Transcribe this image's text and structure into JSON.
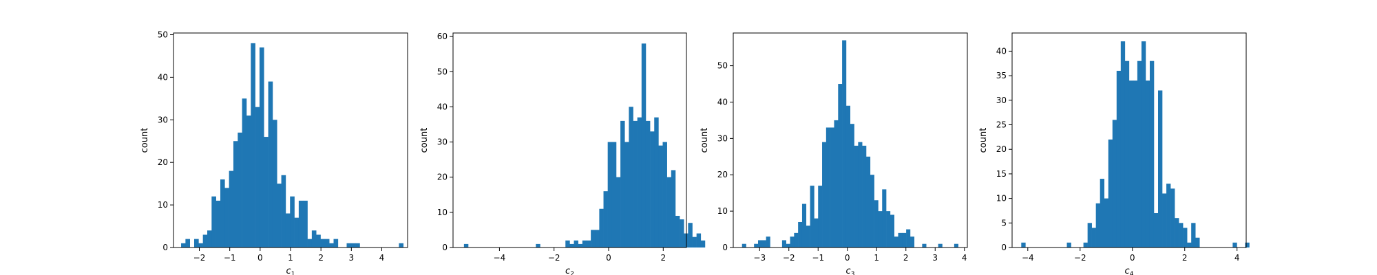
{
  "figure": {
    "background": "#ffffff",
    "bar_color": "#1f77b4"
  },
  "chart_data": [
    {
      "type": "bar",
      "ylabel": "count",
      "xlabel_main": "c",
      "xlabel_sub": "1",
      "xlim": [
        -2.85,
        4.85
      ],
      "ylim": [
        0,
        50.4
      ],
      "xticks": [
        -2,
        -1,
        0,
        1,
        2,
        3,
        4
      ],
      "yticks": [
        0,
        10,
        20,
        30,
        40,
        50
      ],
      "bin_start": -2.6,
      "bin_width": 0.1433,
      "values": [
        1,
        2,
        0,
        2,
        1,
        3,
        4,
        12,
        11,
        16,
        14,
        18,
        25,
        27,
        35,
        31,
        48,
        33,
        47,
        26,
        39,
        30,
        15,
        17,
        8,
        12,
        7,
        11,
        11,
        2,
        4,
        3,
        2,
        2,
        1,
        2,
        0,
        0,
        1,
        1,
        1,
        0,
        0,
        0,
        0,
        0,
        0,
        0,
        0,
        0,
        1
      ]
    },
    {
      "type": "bar",
      "ylabel": "count",
      "xlabel_main": "c",
      "xlabel_sub": "2",
      "xlim": [
        -5.7,
        2.85
      ],
      "ylim": [
        0,
        61
      ],
      "xticks": [
        -4,
        -2,
        0,
        2
      ],
      "yticks": [
        0,
        10,
        20,
        30,
        40,
        50,
        60
      ],
      "bin_start": -5.3,
      "bin_width": 0.1549,
      "values": [
        1,
        0,
        0,
        0,
        0,
        0,
        0,
        0,
        0,
        0,
        0,
        0,
        0,
        0,
        0,
        0,
        0,
        1,
        0,
        0,
        0,
        0,
        0,
        0,
        2,
        1,
        2,
        1,
        2,
        2,
        5,
        5,
        11,
        16,
        30,
        30,
        20,
        36,
        30,
        40,
        36,
        37,
        58,
        36,
        33,
        37,
        29,
        30,
        20,
        22,
        9,
        8,
        4,
        7,
        3,
        4,
        2
      ]
    },
    {
      "type": "bar",
      "ylabel": "count",
      "xlabel_main": "c",
      "xlabel_sub": "3",
      "xlim": [
        -3.9,
        4.1
      ],
      "ylim": [
        0,
        59
      ],
      "xticks": [
        -3,
        -2,
        -1,
        0,
        1,
        2,
        3,
        4
      ],
      "yticks": [
        0,
        10,
        20,
        30,
        40,
        50
      ],
      "bin_start": -3.6,
      "bin_width": 0.1368,
      "values": [
        1,
        0,
        0,
        1,
        2,
        2,
        3,
        0,
        0,
        0,
        2,
        1,
        3,
        4,
        7,
        12,
        6,
        17,
        8,
        17,
        29,
        33,
        33,
        35,
        45,
        57,
        39,
        34,
        28,
        29,
        28,
        25,
        20,
        13,
        10,
        16,
        10,
        9,
        3,
        4,
        4,
        5,
        3,
        0,
        0,
        1,
        0,
        0,
        0,
        1,
        0,
        0,
        0,
        1
      ]
    },
    {
      "type": "bar",
      "ylabel": "count",
      "xlabel_main": "c",
      "xlabel_sub": "4",
      "xlim": [
        -4.6,
        4.35
      ],
      "ylim": [
        0,
        43.7
      ],
      "xticks": [
        -4,
        -2,
        0,
        2,
        4
      ],
      "yticks": [
        0,
        5,
        10,
        15,
        20,
        25,
        30,
        35,
        40
      ],
      "bin_start": -4.25,
      "bin_width": 0.1585,
      "values": [
        1,
        0,
        0,
        0,
        0,
        0,
        0,
        0,
        0,
        0,
        0,
        1,
        0,
        0,
        0,
        1,
        5,
        4,
        9,
        14,
        10,
        22,
        26,
        36,
        42,
        38,
        34,
        34,
        38,
        42,
        34,
        38,
        7,
        32,
        11,
        13,
        12,
        6,
        5,
        4,
        1,
        5,
        2,
        0,
        0,
        0,
        0,
        0,
        0,
        0,
        0,
        1,
        0,
        0,
        1
      ]
    }
  ]
}
